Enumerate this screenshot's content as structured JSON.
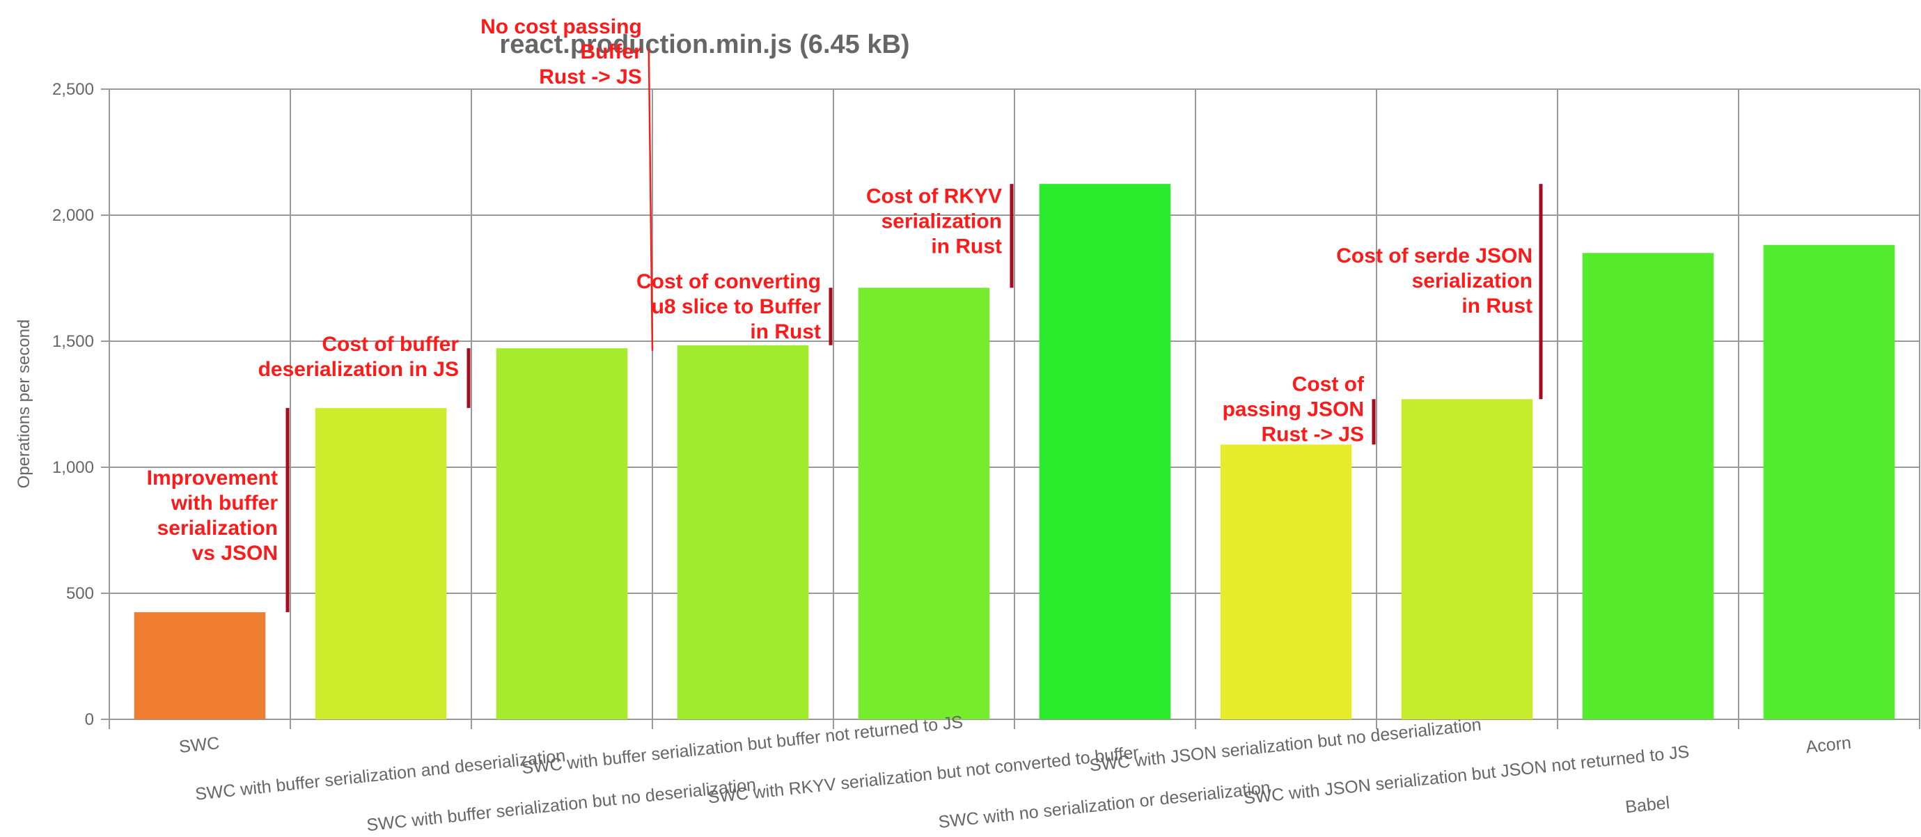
{
  "chart_data": {
    "type": "bar",
    "title": "react.production.min.js (6.45 kB)",
    "ylabel": "Operations per second",
    "xlabel": "",
    "ylim": [
      0,
      2500
    ],
    "yticks": [
      0,
      500,
      1000,
      1500,
      2000,
      2500
    ],
    "ytick_labels": [
      "0",
      "500",
      "1,000",
      "1,500",
      "2,000",
      "2,500"
    ],
    "grid": true,
    "categories": [
      "SWC",
      "SWC with buffer serialization and deserialization",
      "SWC with buffer serialization but no deserialization",
      "SWC with buffer serialization but buffer not returned to JS",
      "SWC with RKYV serialization but not converted to buffer",
      "SWC with no serialization or deserialization",
      "SWC with JSON serialization but no deserialization",
      "SWC with JSON serialization but JSON not returned to JS",
      "Babel",
      "Acorn"
    ],
    "values": [
      425,
      1235,
      1472,
      1484,
      1712,
      2124,
      1090,
      1270,
      1850,
      1882
    ],
    "colors": [
      "#f07e30",
      "#cdec2c",
      "#a6ec2c",
      "#a0ec2c",
      "#75ec2c",
      "#2aec2c",
      "#e6ec2c",
      "#c6ec2c",
      "#56ec2c",
      "#52ec2c"
    ],
    "annotations": [
      {
        "lines": [
          "Improvement",
          "with buffer",
          "serialization",
          "vs JSON"
        ],
        "between": [
          0,
          1
        ],
        "from": 425,
        "to": 1235
      },
      {
        "lines": [
          "Cost of buffer",
          "deserialization in JS"
        ],
        "between": [
          1,
          2
        ],
        "from": 1235,
        "to": 1472
      },
      {
        "lines": [
          "No cost passing",
          "Buffer",
          "Rust -> JS"
        ],
        "between": [
          2,
          3
        ],
        "from": 1472,
        "to": 1484
      },
      {
        "lines": [
          "Cost of converting",
          "u8 slice to Buffer",
          "in Rust"
        ],
        "between": [
          3,
          4
        ],
        "from": 1484,
        "to": 1712
      },
      {
        "lines": [
          "Cost of RKYV",
          "serialization",
          "in Rust"
        ],
        "between": [
          4,
          5
        ],
        "from": 1712,
        "to": 2124
      },
      {
        "lines": [
          "Cost of",
          "passing JSON",
          "Rust -> JS"
        ],
        "between": [
          6,
          7
        ],
        "from": 1090,
        "to": 1270
      },
      {
        "lines": [
          "Cost of serde JSON",
          "serialization",
          "in Rust"
        ],
        "between": [
          7,
          5
        ],
        "from": 1270,
        "to": 2124
      }
    ]
  }
}
